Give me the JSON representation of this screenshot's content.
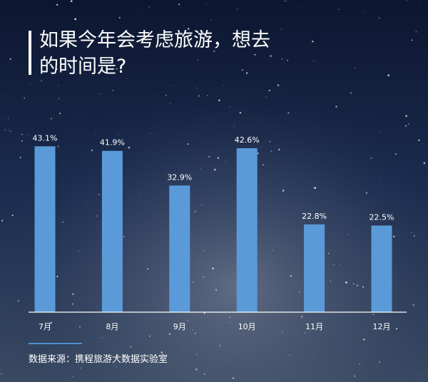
{
  "chart_data": {
    "type": "bar",
    "title": "如果今年会考虑旅游，想去的时间是?",
    "title_lines": [
      "如果今年会考虑旅游，想去",
      "的时间是?"
    ],
    "categories": [
      "7月",
      "8月",
      "9月",
      "10月",
      "11月",
      "12月"
    ],
    "values": [
      43.1,
      41.9,
      32.9,
      42.6,
      22.8,
      22.5
    ],
    "value_labels": [
      "43.1%",
      "41.9%",
      "32.9%",
      "42.6%",
      "22.8%",
      "22.5%"
    ],
    "ylim": [
      0,
      50
    ],
    "grid": false,
    "legend": "none",
    "colors": {
      "bar": "#5b9ad9",
      "axis": "#ffffff",
      "text": "#ffffff",
      "background": "#0f1a33"
    }
  },
  "source": "数据来源：携程旅游大数据实验室"
}
